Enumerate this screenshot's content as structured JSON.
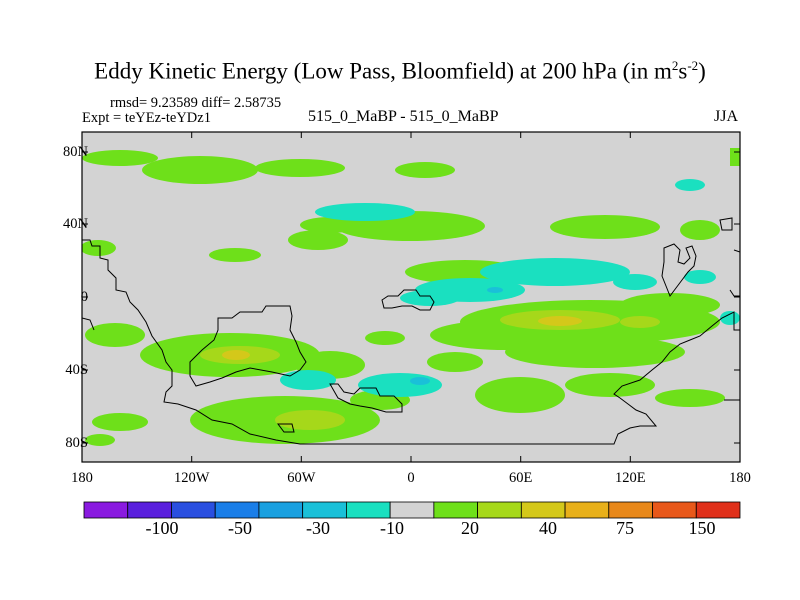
{
  "header": {
    "title": "Eddy Kinetic Energy (Low Pass, Bloomfield) at 200 hPa (in m",
    "title_sup1": "2",
    "title_mid": "s",
    "title_sup2": "-2",
    "title_close": ")",
    "rmsd_line": "rmsd= 9.23589 diff= 2.58735",
    "expt_line": "Expt = teYEz-teYDz1",
    "case_label": "515_0_MaBP - 515_0_MaBP",
    "season": "JJA"
  },
  "map": {
    "lat_labels": [
      "80N",
      "40N",
      "0",
      "40S",
      "80S"
    ],
    "lon_labels": [
      "180",
      "120W",
      "60W",
      "0",
      "60E",
      "120E",
      "180"
    ],
    "background_color": "#d3d3d3"
  },
  "colorbar": {
    "colors": [
      "#8a1ae0",
      "#5a1fdd",
      "#2a4fe0",
      "#1a7ee8",
      "#1aa0e0",
      "#1ac0d8",
      "#1ae0c0",
      "#d3d3d3",
      "#6ee01a",
      "#a6d81a",
      "#d4c81a",
      "#e8b01a",
      "#e8881a",
      "#e8581a",
      "#e0301a"
    ],
    "labels": [
      "-100",
      "-50",
      "-30",
      "-10",
      "20",
      "40",
      "75",
      "150"
    ]
  }
}
